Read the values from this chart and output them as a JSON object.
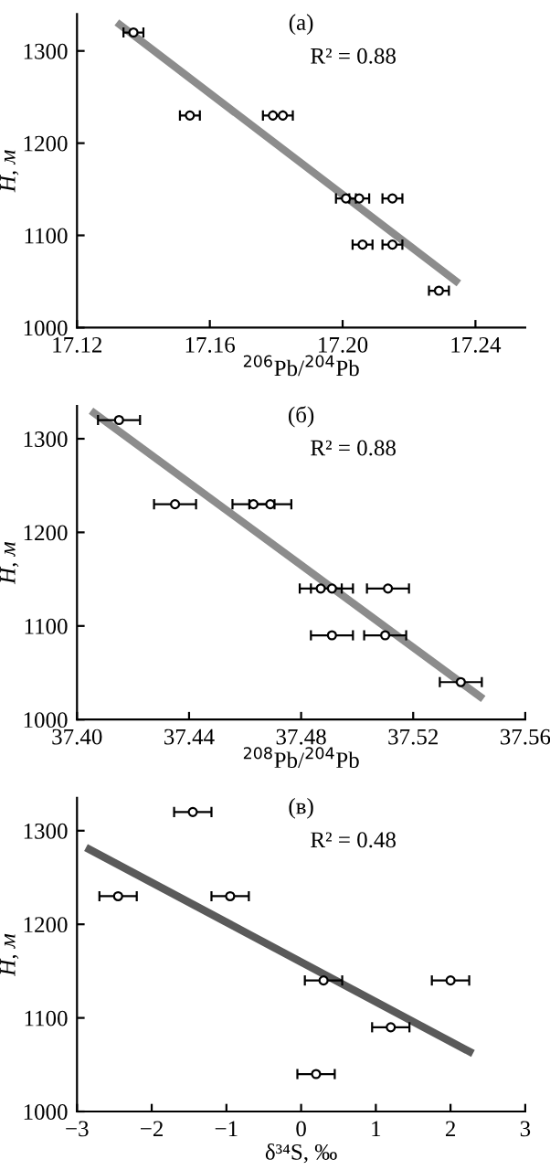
{
  "chart_data": [
    {
      "type": "scatter",
      "title": "(а)",
      "xlabel": "$^{206}$Pb/$^{204}$Pb",
      "ylabel": "H, м",
      "annotations": [
        "R² = 0.88"
      ],
      "xlim": [
        17.12,
        17.255
      ],
      "xticks": [
        17.12,
        17.16,
        {
          "value": 17.2,
          "label": "17.20"
        },
        17.24
      ],
      "ylim": [
        1000,
        1340
      ],
      "yticks": [
        1000,
        1100,
        1200,
        1300
      ],
      "grid": false,
      "series": [
        {
          "marker": "circle",
          "color": "#000000",
          "x": [
            17.137,
            17.154,
            17.179,
            17.182,
            17.201,
            17.205,
            17.215,
            17.206,
            17.215,
            17.229
          ],
          "values": [
            1320,
            1230,
            1230,
            1230,
            1140,
            1140,
            1140,
            1090,
            1090,
            1040
          ],
          "xerrors": [
            0.003,
            0.003,
            0.003,
            0.003,
            0.003,
            0.003,
            0.003,
            0.003,
            0.003,
            0.003
          ]
        },
        {
          "type": "line",
          "color": "#8c8c8c",
          "x": [
            17.132,
            17.235
          ],
          "values": [
            1331,
            1048
          ]
        }
      ]
    },
    {
      "type": "scatter",
      "title": "(б)",
      "xlabel": "$^{208}$Pb/$^{204}$Pb",
      "ylabel": "H, м",
      "annotations": [
        "R² = 0.88"
      ],
      "xlim": [
        37.4,
        37.56
      ],
      "xticks": [
        {
          "value": 37.4,
          "label": "37.40"
        },
        37.44,
        37.48,
        37.52,
        37.56
      ],
      "ylim": [
        1000,
        1335
      ],
      "yticks": [
        1000,
        1100,
        1200,
        1300
      ],
      "grid": false,
      "series": [
        {
          "marker": "circle",
          "color": "#000000",
          "x": [
            37.415,
            37.435,
            37.463,
            37.469,
            37.487,
            37.491,
            37.511,
            37.491,
            37.51,
            37.537
          ],
          "values": [
            1320,
            1230,
            1230,
            1230,
            1140,
            1140,
            1140,
            1090,
            1090,
            1040
          ],
          "xerrors": [
            0.0075,
            0.0075,
            0.0075,
            0.0075,
            0.0075,
            0.0075,
            0.0075,
            0.0075,
            0.0075,
            0.0075
          ]
        },
        {
          "type": "line",
          "color": "#8c8c8c",
          "x": [
            37.405,
            37.545
          ],
          "values": [
            1330,
            1022
          ]
        }
      ]
    },
    {
      "type": "scatter",
      "title": "(в)",
      "xlabel": "δ³⁴S, ‰",
      "ylabel": "H, м",
      "annotations": [
        "R² = 0.48"
      ],
      "xlim": [
        -3,
        3
      ],
      "xticks": [
        {
          "value": -3,
          "label": "−3"
        },
        {
          "value": -2,
          "label": "−2"
        },
        {
          "value": -1,
          "label": "−1"
        },
        0,
        1,
        2,
        3
      ],
      "ylim": [
        1000,
        1335
      ],
      "yticks": [
        1000,
        1100,
        1200,
        1300
      ],
      "grid": false,
      "series": [
        {
          "marker": "circle",
          "color": "#000000",
          "x": [
            -1.45,
            -2.45,
            -0.95,
            0.3,
            2.0,
            1.2,
            0.2
          ],
          "values": [
            1320,
            1230,
            1230,
            1140,
            1140,
            1090,
            1040
          ],
          "xerrors": [
            0.25,
            0.25,
            0.25,
            0.25,
            0.25,
            0.25,
            0.25
          ]
        },
        {
          "type": "line",
          "color": "#5a5a5a",
          "x": [
            -2.88,
            2.3
          ],
          "values": [
            1282,
            1062
          ]
        }
      ]
    }
  ]
}
